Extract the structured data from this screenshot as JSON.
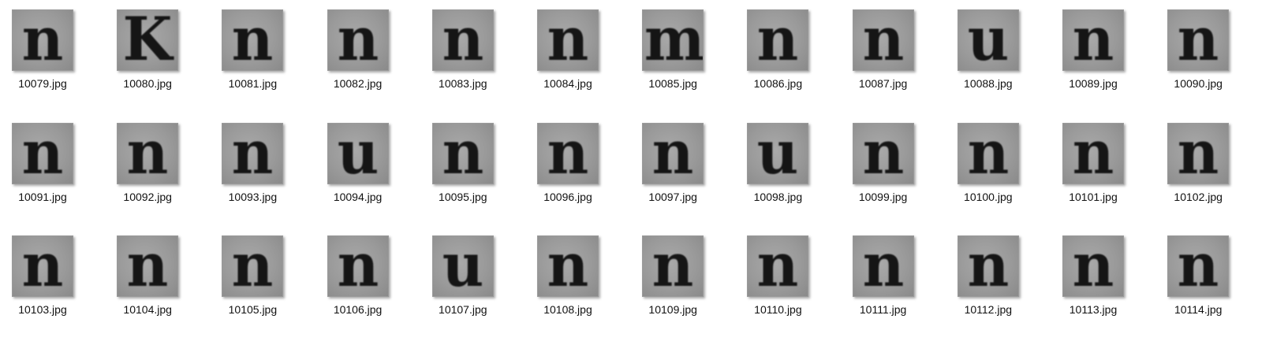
{
  "files": [
    {
      "glyph": "n",
      "name": "10079.jpg"
    },
    {
      "glyph": "K",
      "name": "10080.jpg"
    },
    {
      "glyph": "n",
      "name": "10081.jpg"
    },
    {
      "glyph": "n",
      "name": "10082.jpg"
    },
    {
      "glyph": "n",
      "name": "10083.jpg"
    },
    {
      "glyph": "n",
      "name": "10084.jpg"
    },
    {
      "glyph": "m",
      "name": "10085.jpg"
    },
    {
      "glyph": "n",
      "name": "10086.jpg"
    },
    {
      "glyph": "n",
      "name": "10087.jpg"
    },
    {
      "glyph": "u",
      "name": "10088.jpg"
    },
    {
      "glyph": "n",
      "name": "10089.jpg"
    },
    {
      "glyph": "n",
      "name": "10090.jpg"
    },
    {
      "glyph": "n",
      "name": "10091.jpg"
    },
    {
      "glyph": "n",
      "name": "10092.jpg"
    },
    {
      "glyph": "n",
      "name": "10093.jpg"
    },
    {
      "glyph": "u",
      "name": "10094.jpg"
    },
    {
      "glyph": "n",
      "name": "10095.jpg"
    },
    {
      "glyph": "n",
      "name": "10096.jpg"
    },
    {
      "glyph": "n",
      "name": "10097.jpg"
    },
    {
      "glyph": "u",
      "name": "10098.jpg"
    },
    {
      "glyph": "n",
      "name": "10099.jpg"
    },
    {
      "glyph": "n",
      "name": "10100.jpg"
    },
    {
      "glyph": "n",
      "name": "10101.jpg"
    },
    {
      "glyph": "n",
      "name": "10102.jpg"
    },
    {
      "glyph": "n",
      "name": "10103.jpg"
    },
    {
      "glyph": "n",
      "name": "10104.jpg"
    },
    {
      "glyph": "n",
      "name": "10105.jpg"
    },
    {
      "glyph": "n",
      "name": "10106.jpg"
    },
    {
      "glyph": "u",
      "name": "10107.jpg"
    },
    {
      "glyph": "n",
      "name": "10108.jpg"
    },
    {
      "glyph": "n",
      "name": "10109.jpg"
    },
    {
      "glyph": "n",
      "name": "10110.jpg"
    },
    {
      "glyph": "n",
      "name": "10111.jpg"
    },
    {
      "glyph": "n",
      "name": "10112.jpg"
    },
    {
      "glyph": "n",
      "name": "10113.jpg"
    },
    {
      "glyph": "n",
      "name": "10114.jpg"
    }
  ]
}
